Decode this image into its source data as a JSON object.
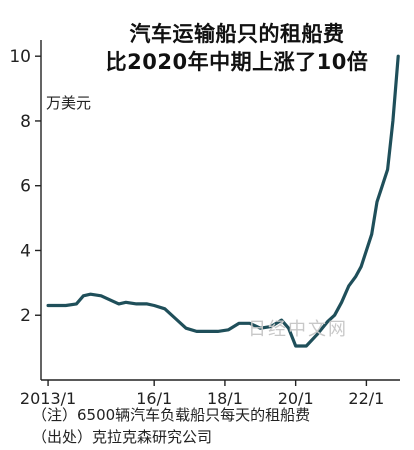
{
  "chart_data": {
    "type": "line",
    "title_lines": [
      "汽车运输船只的租船费",
      "比2020年中期上涨了10倍"
    ],
    "ylabel": "万美元",
    "ylim": [
      0,
      10.5
    ],
    "yticks": [
      2,
      4,
      6,
      8,
      10
    ],
    "xticks": [
      "2013/1",
      "16/1",
      "18/1",
      "20/1",
      "22/1"
    ],
    "grid": false,
    "series": [
      {
        "x": [
          2013.0,
          2013.5,
          2013.8,
          2014.0,
          2014.2,
          2014.5,
          2014.8,
          2015.0,
          2015.2,
          2015.5,
          2015.8,
          2016.0,
          2016.3,
          2016.6,
          2016.9,
          2017.2,
          2017.5,
          2017.8,
          2018.1,
          2018.4,
          2018.7,
          2019.0,
          2019.3,
          2019.6,
          2019.8,
          2020.0,
          2020.3,
          2020.6,
          2020.9,
          2021.1,
          2021.3,
          2021.5,
          2021.7,
          2021.85,
          2022.0,
          2022.15,
          2022.3,
          2022.45,
          2022.6,
          2022.75,
          2022.9
        ],
        "values": [
          2.3,
          2.3,
          2.35,
          2.6,
          2.65,
          2.6,
          2.45,
          2.35,
          2.4,
          2.35,
          2.35,
          2.3,
          2.2,
          1.9,
          1.6,
          1.5,
          1.5,
          1.5,
          1.55,
          1.75,
          1.75,
          1.6,
          1.65,
          1.85,
          1.6,
          1.05,
          1.05,
          1.4,
          1.8,
          2.0,
          2.4,
          2.9,
          3.2,
          3.5,
          4.0,
          4.5,
          5.5,
          6.0,
          6.5,
          8.0,
          10.0
        ]
      }
    ]
  },
  "title_line1": "汽车运输船只的租船费",
  "title_line2": "比2020年中期上涨了10倍",
  "unit": "万美元",
  "note": "（注）6500辆汽车负载船只每天的租船费",
  "source": "（出处）克拉克森研究公司",
  "watermark": "日经中文网",
  "colors": {
    "line": "#1f4f5a",
    "axis": "#222222"
  }
}
